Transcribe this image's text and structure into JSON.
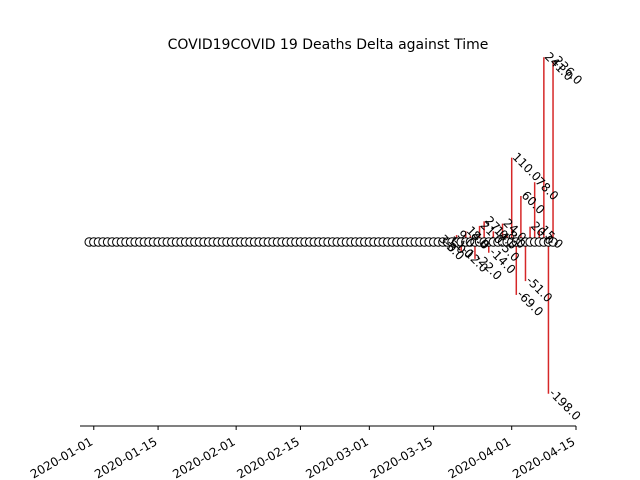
{
  "chart_data": {
    "type": "stem",
    "title": "COVID19COVID 19 Deaths Delta against Time",
    "xlabel": "",
    "ylabel": "",
    "x_start": "2019-12-31",
    "x_end": "2020-04-10",
    "xlim": [
      "2019-12-29",
      "2020-04-15"
    ],
    "ylim": [
      -240,
      240
    ],
    "y_axis_visible": false,
    "grid": false,
    "x_ticks": [
      "2020-01-01",
      "2020-01-15",
      "2020-02-01",
      "2020-02-15",
      "2020-03-01",
      "2020-03-15",
      "2020-04-01",
      "2020-04-15"
    ],
    "stem_color": "#d62728",
    "marker_face": "#ffffff",
    "marker_edge": "#000000",
    "points": [
      {
        "x": "2020-03-16",
        "y": 3.0,
        "label": "3.0"
      },
      {
        "x": "2020-03-17",
        "y": -3.0,
        "label": "-3.0"
      },
      {
        "x": "2020-03-18",
        "y": 1.0,
        "label": "1.0"
      },
      {
        "x": "2020-03-19",
        "y": -1.0,
        "label": "-1.0"
      },
      {
        "x": "2020-03-20",
        "y": 9.0,
        "label": "9.0"
      },
      {
        "x": "2020-03-21",
        "y": -12.0,
        "label": "-12.0"
      },
      {
        "x": "2020-03-22",
        "y": 14.0,
        "label": "14.0"
      },
      {
        "x": "2020-03-23",
        "y": 8.0,
        "label": "8.0"
      },
      {
        "x": "2020-03-24",
        "y": -22.0,
        "label": "-22.0"
      },
      {
        "x": "2020-03-25",
        "y": 21.0,
        "label": "21.0"
      },
      {
        "x": "2020-03-26",
        "y": 27.0,
        "label": "27.0"
      },
      {
        "x": "2020-03-27",
        "y": -14.0,
        "label": "-14.0"
      },
      {
        "x": "2020-03-28",
        "y": 14.0,
        "label": "14.0"
      },
      {
        "x": "2020-03-29",
        "y": -5.0,
        "label": "-5.0"
      },
      {
        "x": "2020-03-30",
        "y": 24.0,
        "label": "24.0"
      },
      {
        "x": "2020-03-31",
        "y": 8.0,
        "label": "8.0"
      },
      {
        "x": "2020-04-01",
        "y": 110.0,
        "label": "110.0"
      },
      {
        "x": "2020-04-02",
        "y": -69.0,
        "label": "-69.0"
      },
      {
        "x": "2020-04-03",
        "y": 60.0,
        "label": "60.0"
      },
      {
        "x": "2020-04-04",
        "y": -51.0,
        "label": "-51.0"
      },
      {
        "x": "2020-04-05",
        "y": 20.0,
        "label": "20.0"
      },
      {
        "x": "2020-04-06",
        "y": 78.0,
        "label": "78.0"
      },
      {
        "x": "2020-04-07",
        "y": 15.0,
        "label": "15.0"
      },
      {
        "x": "2020-04-08",
        "y": 241.0,
        "label": "241.0"
      },
      {
        "x": "2020-04-09",
        "y": -198.0,
        "label": "-198.0"
      },
      {
        "x": "2020-04-10",
        "y": 236.0,
        "label": "236.0"
      }
    ]
  }
}
